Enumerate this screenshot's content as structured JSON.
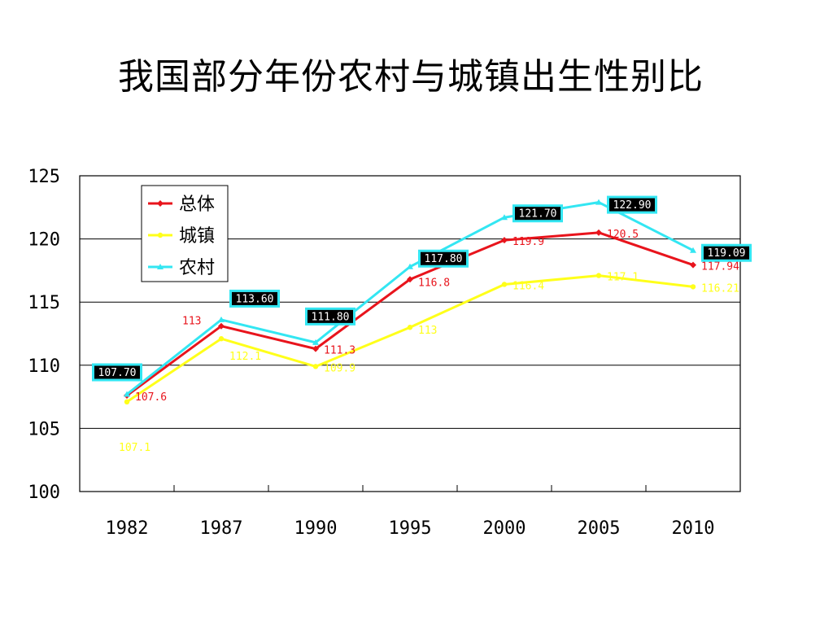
{
  "title": "我国部分年份农村与城镇出生性别比",
  "chart_data": {
    "type": "line",
    "title": "我国部分年份农村与城镇出生性别比",
    "categories": [
      "1982",
      "1987",
      "1990",
      "1995",
      "2000",
      "2005",
      "2010"
    ],
    "ylim": [
      100,
      125
    ],
    "yticks": [
      "100",
      "105",
      "110",
      "115",
      "120",
      "125"
    ],
    "grid": true,
    "legend_position": "top-left",
    "series": [
      {
        "name": "总体",
        "color": "#e8141c",
        "values": [
          107.6,
          113.1,
          111.3,
          116.8,
          119.9,
          120.5,
          117.94
        ],
        "labels": [
          "107.6",
          "113",
          "111.3",
          "116.8",
          "119.9",
          "120.5",
          "117.94"
        ]
      },
      {
        "name": "城镇",
        "color": "#ffff1a",
        "values": [
          107.1,
          112.1,
          109.9,
          113.0,
          116.4,
          117.1,
          116.21
        ],
        "labels": [
          "107.1",
          "112.1",
          "109.9",
          "113",
          "116.4",
          "117.1",
          "116.21"
        ]
      },
      {
        "name": "农村",
        "color": "#33e6f2",
        "values": [
          107.7,
          113.6,
          111.8,
          117.8,
          121.7,
          122.9,
          119.09
        ],
        "labels": [
          "107.70",
          "113.60",
          "111.80",
          "117.80",
          "121.70",
          "122.90",
          "119.09"
        ]
      }
    ]
  }
}
